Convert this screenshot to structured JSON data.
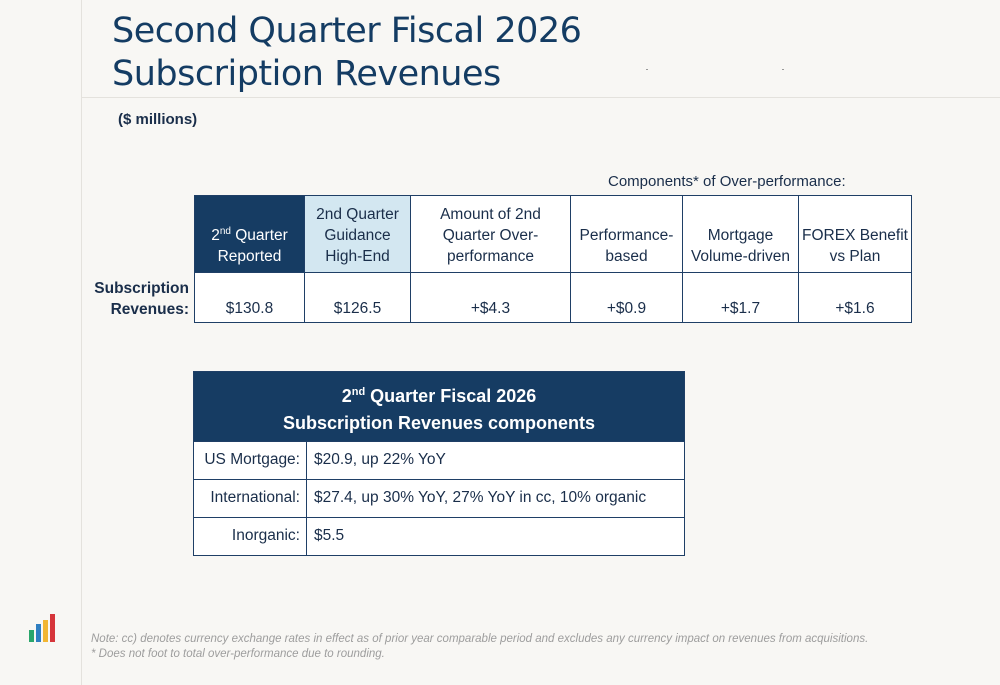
{
  "title": {
    "line1": "Second Quarter Fiscal 2026",
    "line2": "Subscription Revenues"
  },
  "units": "($ millions)",
  "components_heading": "Components* of Over-performance:",
  "summary_table": {
    "headers": {
      "reported": "Reported",
      "reported_prefix_num": "2",
      "reported_sup": "nd",
      "reported_prefix_rest": " Quarter",
      "guidance": "2nd Quarter Guidance High-End",
      "amount": "Amount of 2nd Quarter Over-performance",
      "performance": "Performance-based",
      "mortgage": "Mortgage Volume-driven",
      "forex": "FOREX Benefit vs Plan"
    },
    "row_label": "Subscription Revenues:",
    "values": {
      "reported": "$130.8",
      "guidance": "$126.5",
      "amount": "+$4.3",
      "performance": "+$0.9",
      "mortgage": "+$1.7",
      "forex": "+$1.6"
    }
  },
  "components_table": {
    "title_num": "2",
    "title_sup": "nd",
    "title_rest": " Quarter Fiscal 2026",
    "title_line2": "Subscription Revenues components",
    "rows": [
      {
        "label": "US Mortgage:",
        "value": "$20.9, up 22% YoY"
      },
      {
        "label": "International:",
        "value": "$27.4, up 30% YoY, 27% YoY in cc, 10% organic"
      },
      {
        "label": "Inorganic:",
        "value": "$5.5"
      }
    ]
  },
  "logo_colors": [
    "#2aa66b",
    "#2f7fc1",
    "#f2b632",
    "#d6353a"
  ],
  "notes": {
    "line1": "Note: cc) denotes currency exchange rates in effect as of prior year comparable period and excludes any currency impact on revenues from acquisitions.",
    "line2": "* Does not foot to total over-performance due to rounding."
  }
}
